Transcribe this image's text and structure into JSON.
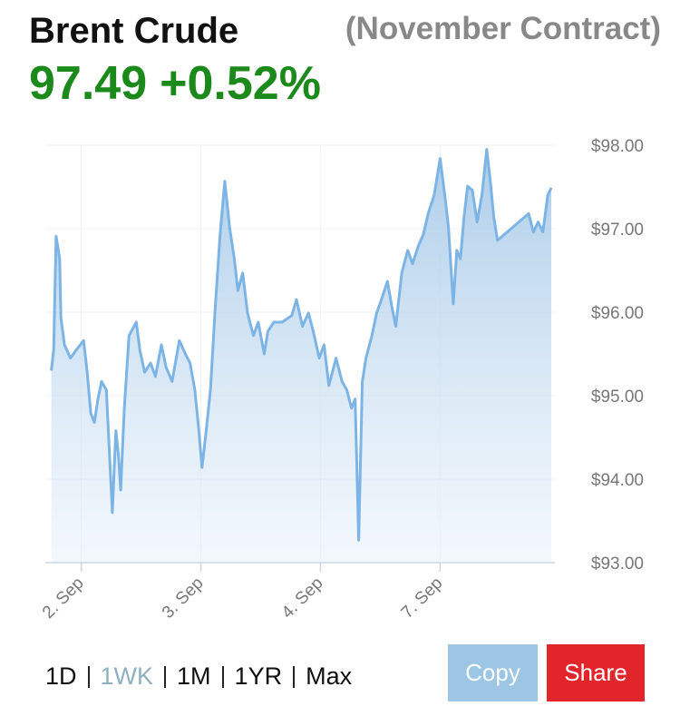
{
  "header": {
    "title": "Brent Crude",
    "subtitle": "(November Contract)",
    "price": "97.49",
    "change": "+0.52%"
  },
  "chart_data": {
    "type": "area",
    "x": [
      0.75,
      0.77,
      0.79,
      0.82,
      0.83,
      0.86,
      0.91,
      0.96,
      1.02,
      1.05,
      1.08,
      1.11,
      1.14,
      1.17,
      1.21,
      1.24,
      1.26,
      1.29,
      1.31,
      1.33,
      1.36,
      1.4,
      1.46,
      1.49,
      1.53,
      1.58,
      1.62,
      1.67,
      1.71,
      1.76,
      1.82,
      1.87,
      1.91,
      1.95,
      1.98,
      2.01,
      2.04,
      2.08,
      2.12,
      2.16,
      2.2,
      2.24,
      2.28,
      2.31,
      2.35,
      2.39,
      2.44,
      2.48,
      2.53,
      2.56,
      2.61,
      2.68,
      2.76,
      2.8,
      2.85,
      2.9,
      2.94,
      2.99,
      3.03,
      3.07,
      3.13,
      3.18,
      3.22,
      3.26,
      3.29,
      3.32,
      3.35,
      3.38,
      3.43,
      3.47,
      3.51,
      3.56,
      3.6,
      3.63,
      3.68,
      3.73,
      3.77,
      3.82,
      3.86,
      3.9,
      3.95,
      4.0,
      4.04,
      4.07,
      4.11,
      4.14,
      4.17,
      4.2,
      4.23,
      4.27,
      4.31,
      4.35,
      4.39,
      4.42,
      4.45,
      4.48,
      4.52,
      4.74,
      4.78,
      4.82,
      4.86,
      4.9,
      4.93
    ],
    "values": [
      95.3,
      95.55,
      96.91,
      96.64,
      95.93,
      95.61,
      95.45,
      95.55,
      95.66,
      95.28,
      94.79,
      94.68,
      94.96,
      95.17,
      95.07,
      94.2,
      93.6,
      94.58,
      94.3,
      93.87,
      94.85,
      95.72,
      95.88,
      95.55,
      95.28,
      95.39,
      95.23,
      95.61,
      95.34,
      95.17,
      95.66,
      95.5,
      95.39,
      95.07,
      94.63,
      94.14,
      94.52,
      95.07,
      96.04,
      96.91,
      97.57,
      97.02,
      96.64,
      96.26,
      96.47,
      95.99,
      95.72,
      95.88,
      95.5,
      95.77,
      95.88,
      95.88,
      95.96,
      96.15,
      95.83,
      95.99,
      95.77,
      95.45,
      95.61,
      95.12,
      95.45,
      95.17,
      95.07,
      94.85,
      94.96,
      93.27,
      95.17,
      95.45,
      95.72,
      95.99,
      96.15,
      96.37,
      96.04,
      95.83,
      96.47,
      96.74,
      96.58,
      96.8,
      96.93,
      97.18,
      97.4,
      97.84,
      97.4,
      97.02,
      96.1,
      96.74,
      96.64,
      97.13,
      97.51,
      97.46,
      97.08,
      97.4,
      97.95,
      97.57,
      97.13,
      96.86,
      96.91,
      97.18,
      96.96,
      97.08,
      96.96,
      97.4,
      97.49
    ],
    "color": "#7db4e6",
    "xlim": [
      0.7,
      4.96
    ],
    "xticks": [
      {
        "value": 1,
        "label": "2. Sep"
      },
      {
        "value": 2,
        "label": "3. Sep"
      },
      {
        "value": 3,
        "label": "4. Sep"
      },
      {
        "value": 4,
        "label": "7. Sep"
      }
    ],
    "ylim": [
      93,
      98
    ],
    "yticks": [
      {
        "value": 93,
        "label": "$93.00"
      },
      {
        "value": 94,
        "label": "$94.00"
      },
      {
        "value": 95,
        "label": "$95.00"
      },
      {
        "value": 96,
        "label": "$96.00"
      },
      {
        "value": 97,
        "label": "$97.00"
      },
      {
        "value": 98,
        "label": "$98.00"
      }
    ],
    "grid": true
  },
  "ranges": {
    "options": [
      "1D",
      "1WK",
      "1M",
      "1YR",
      "Max"
    ],
    "active": 1
  },
  "buttons": [
    "Copy",
    "Share"
  ]
}
